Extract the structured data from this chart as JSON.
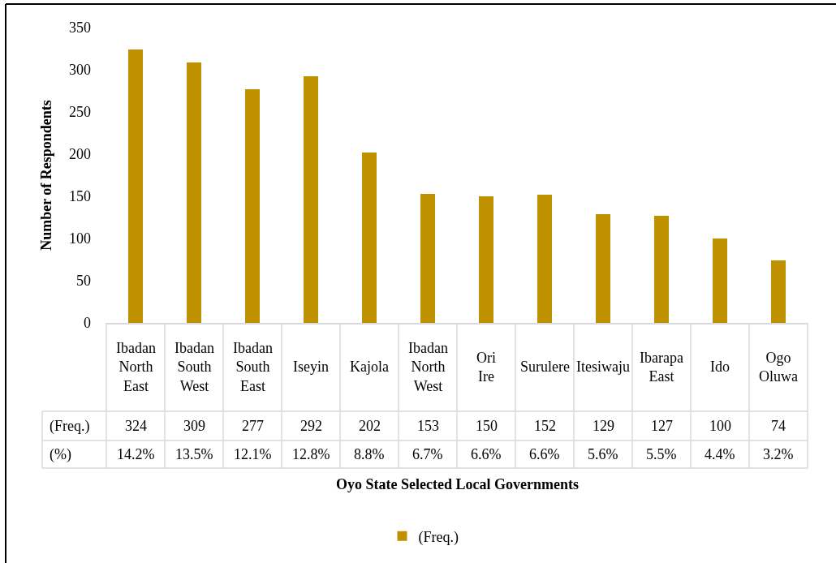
{
  "chart_data": {
    "type": "bar",
    "ylabel": "Number of Respondents",
    "categories": [
      "Ibadan North East",
      "Ibadan South West",
      "Ibadan South East",
      "Iseyin",
      "Kajola",
      "Ibadan North West",
      "Ori Ire",
      "Surulere",
      "Itesiwaju",
      "Ibarapa East",
      "Ido",
      "Ogo Oluwa"
    ],
    "series": [
      {
        "name": "(Freq.)",
        "color": "#bf9000",
        "values": [
          324,
          309,
          277,
          292,
          202,
          153,
          150,
          152,
          129,
          127,
          100,
          74
        ]
      }
    ],
    "ylim": [
      0,
      350
    ],
    "yticks": [
      0,
      50,
      100,
      150,
      200,
      250,
      300,
      350
    ],
    "data_labels": true,
    "legend": "bottom",
    "annotations": [
      "(%)",
      "14.2%",
      "13.5%",
      "12.1%",
      "12.8%",
      "8.8%",
      "6.7%",
      "6.6%",
      "6.6%",
      "5.6%",
      "5.5%",
      "4.4%",
      "3.2%",
      "Oyo State Selected Local Governments"
    ]
  }
}
